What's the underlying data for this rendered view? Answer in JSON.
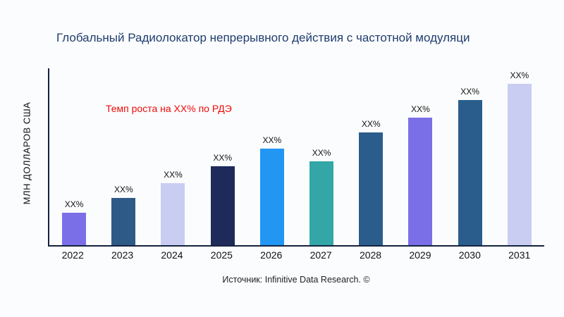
{
  "title": "Глобальный Радиолокатор непрерывного действия с частотной модуляци",
  "ylabel": "МЛН ДОЛЛАРОВ США",
  "annotation": "Темп роста на XX% по РДЭ",
  "source": "Источник: Infinitive Data Research. ©",
  "colors": {
    "title": "#1f3d6e",
    "annotation": "#f00a0a",
    "axis": "#16233f"
  },
  "chart_data": {
    "type": "bar",
    "title": "Глобальный Радиолокатор непрерывного действия с частотной модуляци",
    "xlabel": "",
    "ylabel": "МЛН ДОЛЛАРОВ США",
    "categories": [
      "2022",
      "2023",
      "2024",
      "2025",
      "2026",
      "2027",
      "2028",
      "2029",
      "2030",
      "2031"
    ],
    "values": [
      46,
      67,
      88,
      112,
      136,
      119,
      159,
      180,
      205,
      228
    ],
    "bar_labels": [
      "XX%",
      "XX%",
      "XX%",
      "XX%",
      "XX%",
      "XX%",
      "XX%",
      "XX%",
      "XX%",
      "XX%"
    ],
    "bar_colors": [
      "#7b6fe8",
      "#2e5a87",
      "#c9cdf2",
      "#1e2a5a",
      "#2196f3",
      "#33a6a8",
      "#2a5d8c",
      "#7b6fe8",
      "#2a5d8c",
      "#c9cdf2"
    ],
    "ylim": [
      0,
      250
    ],
    "grid": false,
    "legend": "none",
    "annotation": "Темп роста на XX% по РДЭ"
  }
}
